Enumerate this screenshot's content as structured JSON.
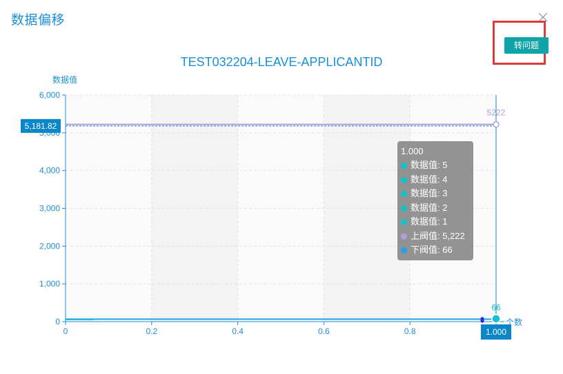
{
  "dialog": {
    "title": "数据偏移",
    "close_icon": "close-icon"
  },
  "toolbar": {
    "transfer_label": "转问题"
  },
  "colors": {
    "axis": "#1a8fd6",
    "upper_threshold": "#b39ddb",
    "lower_threshold": "#1fa2e8",
    "series": "#12c2c8",
    "pointer": "#0b86c8",
    "highlight": "#e03a3a",
    "button": "#10a3a7"
  },
  "chart_data": {
    "type": "line",
    "title": "TEST032204-LEAVE-APPLICANTID",
    "ylabel": "数据值",
    "xlabel": "个数",
    "xlim": [
      0,
      1
    ],
    "ylim": [
      0,
      6000
    ],
    "xticks": [
      "0",
      "0.2",
      "0.4",
      "0.6",
      "0.8",
      "1.000"
    ],
    "yticks": [
      "0",
      "1,000",
      "2,000",
      "3,000",
      "4,000",
      "5,000",
      "6,000"
    ],
    "grid": true,
    "series": [
      {
        "name": "数据值",
        "x": [
          1
        ],
        "values": [
          5
        ]
      },
      {
        "name": "数据值",
        "x": [
          1
        ],
        "values": [
          4
        ]
      },
      {
        "name": "数据值",
        "x": [
          1
        ],
        "values": [
          3
        ]
      },
      {
        "name": "数据值",
        "x": [
          1
        ],
        "values": [
          2
        ]
      },
      {
        "name": "数据值",
        "x": [
          1
        ],
        "values": [
          1
        ]
      },
      {
        "name": "上阀值",
        "x": [
          0,
          1
        ],
        "values": [
          5222,
          5222
        ]
      },
      {
        "name": "下阀值",
        "x": [
          0,
          1
        ],
        "values": [
          66,
          66
        ]
      }
    ],
    "point_labels": [
      {
        "x": 1,
        "y": 5222,
        "text": "5222"
      },
      {
        "x": 1,
        "y": 66,
        "text": "66"
      }
    ],
    "crosshair": {
      "x": 1,
      "y": 5181.82,
      "x_label": "1.000",
      "y_label": "5,181.82"
    },
    "tooltip": {
      "title": "1.000",
      "rows": [
        {
          "label": "数据值: 5",
          "color": "#12c2c8"
        },
        {
          "label": "数据值: 4",
          "color": "#12c2c8"
        },
        {
          "label": "数据值: 3",
          "color": "#12c2c8"
        },
        {
          "label": "数据值: 2",
          "color": "#12c2c8"
        },
        {
          "label": "数据值: 1",
          "color": "#12c2c8"
        },
        {
          "label": "上阀值: 5,222",
          "color": "#b39ddb"
        },
        {
          "label": "下阀值: 66",
          "color": "#1fa2e8"
        }
      ]
    }
  }
}
